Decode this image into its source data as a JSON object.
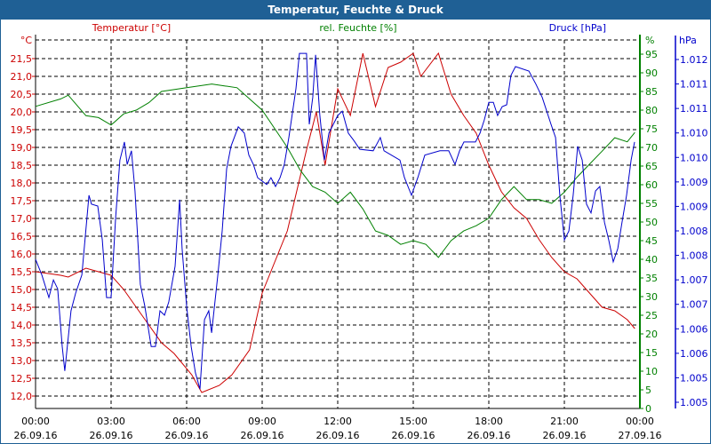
{
  "window": {
    "title": "Temperatur, Feuchte & Druck"
  },
  "colors": {
    "temp": "#cc0000",
    "hum": "#008000",
    "press": "#0000cc",
    "title_bg": "#1f6095"
  },
  "chart_data": {
    "type": "line",
    "title": "Temperatur, Feuchte & Druck",
    "x_unit": "hours since 26.09.16 00:00",
    "x_ticks": [
      {
        "time": "00:00",
        "date": "26.09.16"
      },
      {
        "time": "03:00",
        "date": "26.09.16"
      },
      {
        "time": "06:00",
        "date": "26.09.16"
      },
      {
        "time": "09:00",
        "date": "26.09.16"
      },
      {
        "time": "12:00",
        "date": "26.09.16"
      },
      {
        "time": "15:00",
        "date": "26.09.16"
      },
      {
        "time": "18:00",
        "date": "26.09.16"
      },
      {
        "time": "21:00",
        "date": "26.09.16"
      },
      {
        "time": "00:00",
        "date": "27.09.16"
      }
    ],
    "xlim": [
      0,
      24
    ],
    "axes": {
      "temp": {
        "label": "Temperatur [°C]",
        "unit": "°C",
        "ylim": [
          11.65,
          22.0
        ],
        "ticks": [
          "21,5",
          "21,0",
          "20,5",
          "20,0",
          "19,5",
          "19,0",
          "18,5",
          "18,0",
          "17,5",
          "17,0",
          "16,5",
          "16,0",
          "15,5",
          "15,0",
          "14,5",
          "14,0",
          "13,5",
          "13,0",
          "12,5",
          "12,0"
        ]
      },
      "hum": {
        "label": "rel. Feuchte [%]",
        "unit": "%",
        "ylim": [
          0,
          99
        ],
        "ticks": [
          "95",
          "90",
          "85",
          "80",
          "75",
          "70",
          "65",
          "60",
          "55",
          "50",
          "45",
          "40",
          "35",
          "30",
          "25",
          "20",
          "15",
          "10",
          "5",
          "0"
        ]
      },
      "press": {
        "label": "Druck [hPa]",
        "unit": "hPa",
        "ylim": [
          1004.87,
          1012.22
        ],
        "ticks": [
          "1.012",
          "1.011",
          "1.011",
          "1.010",
          "1.010",
          "1.009",
          "1.009",
          "1.008",
          "1.008",
          "1.007",
          "1.007",
          "1.006",
          "1.006",
          "1.005",
          "1.005"
        ]
      }
    },
    "series": [
      {
        "name": "Temperatur",
        "axis": "temp",
        "x": [
          0,
          1,
          1.3,
          2,
          3,
          3.5,
          4,
          5,
          5.5,
          6.2,
          6.6,
          7.3,
          7.8,
          8.5,
          9,
          10,
          10.75,
          11.15,
          11.5,
          12,
          12.5,
          13,
          13.5,
          14,
          14.5,
          15,
          15.3,
          16,
          16.5,
          17,
          17.5,
          18,
          18.5,
          19,
          19.5,
          20,
          20.5,
          21,
          21.5,
          22,
          22.5,
          23,
          23.5,
          23.8
        ],
        "y": [
          15.5,
          15.4,
          15.35,
          15.6,
          15.4,
          15.0,
          14.5,
          13.5,
          13.2,
          12.6,
          12.1,
          12.3,
          12.6,
          13.3,
          14.9,
          16.65,
          18.9,
          20.0,
          18.5,
          20.65,
          19.9,
          21.65,
          20.15,
          21.25,
          21.4,
          21.65,
          21.0,
          21.65,
          20.5,
          19.9,
          19.4,
          18.5,
          17.75,
          17.3,
          17.0,
          16.4,
          15.9,
          15.5,
          15.3,
          14.9,
          14.5,
          14.4,
          14.15,
          13.9
        ]
      },
      {
        "name": "rel. Feuchte",
        "axis": "hum",
        "x": [
          0,
          1,
          1.3,
          2,
          2.5,
          3,
          3.5,
          4,
          4.5,
          5,
          6,
          7,
          7.5,
          8,
          8.5,
          9,
          9.5,
          10,
          10.5,
          11,
          11.5,
          12,
          12.5,
          13,
          13.5,
          14,
          14.5,
          15,
          15.5,
          16,
          16.5,
          17,
          17.5,
          18,
          18.5,
          19,
          19.5,
          20,
          20.5,
          21,
          21.5,
          22,
          22.5,
          23,
          23.5,
          23.8
        ],
        "y": [
          81,
          83,
          84,
          78.5,
          78,
          76,
          79,
          80,
          82,
          85,
          86,
          87,
          86.5,
          86,
          83,
          80,
          75,
          70,
          64,
          59.5,
          58,
          55,
          58,
          53.5,
          47.6,
          46.4,
          44,
          45,
          44,
          40.5,
          45,
          47.6,
          49,
          51,
          56,
          59.5,
          56,
          56,
          55,
          58,
          62,
          65.5,
          69,
          72.6,
          71.5,
          74
        ]
      },
      {
        "name": "Druck",
        "axis": "press",
        "x": [
          0,
          0.25,
          0.53,
          0.71,
          0.88,
          1.06,
          1.16,
          1.41,
          1.59,
          1.84,
          2.12,
          2.22,
          2.47,
          2.65,
          2.82,
          3.0,
          3.18,
          3.35,
          3.53,
          3.64,
          3.81,
          3.95,
          4.16,
          4.34,
          4.59,
          4.76,
          4.94,
          5.12,
          5.29,
          5.54,
          5.72,
          5.82,
          6.0,
          6.18,
          6.35,
          6.53,
          6.71,
          6.88,
          6.99,
          7.24,
          7.41,
          7.59,
          7.76,
          8.05,
          8.29,
          8.47,
          8.65,
          8.82,
          9.18,
          9.35,
          9.53,
          9.71,
          9.88,
          10.06,
          10.34,
          10.48,
          10.76,
          10.87,
          11.01,
          11.12,
          11.29,
          11.47,
          11.65,
          12.0,
          12.18,
          12.42,
          12.64,
          12.88,
          13.41,
          13.69,
          13.84,
          14.47,
          14.65,
          14.93,
          15.18,
          15.46,
          16.06,
          16.41,
          16.66,
          16.84,
          17.01,
          17.47,
          17.65,
          17.82,
          18.0,
          18.18,
          18.35,
          18.53,
          18.71,
          18.88,
          19.06,
          19.59,
          19.87,
          20.12,
          20.47,
          20.65,
          20.82,
          21.0,
          21.18,
          21.35,
          21.53,
          21.71,
          21.88,
          22.06,
          22.24,
          22.41,
          22.59,
          22.76,
          22.94,
          23.12,
          23.29,
          23.47,
          23.65,
          23.79
        ],
        "y": [
          1007.92,
          1007.6,
          1007.14,
          1007.5,
          1007.32,
          1006.14,
          1005.64,
          1006.87,
          1007.23,
          1007.6,
          1009.23,
          1009.05,
          1009.01,
          1008.32,
          1007.14,
          1007.14,
          1008.77,
          1009.95,
          1010.32,
          1009.86,
          1010.14,
          1009.32,
          1007.41,
          1006.96,
          1006.14,
          1006.14,
          1006.87,
          1006.78,
          1007.05,
          1007.78,
          1009.14,
          1008.14,
          1006.96,
          1006.14,
          1005.6,
          1005.27,
          1006.69,
          1006.87,
          1006.42,
          1007.6,
          1008.5,
          1009.77,
          1010.23,
          1010.63,
          1010.5,
          1010.05,
          1009.86,
          1009.59,
          1009.45,
          1009.59,
          1009.41,
          1009.59,
          1009.86,
          1010.41,
          1011.41,
          1012.13,
          1012.13,
          1010.68,
          1011.23,
          1012.1,
          1010.86,
          1009.95,
          1010.5,
          1010.86,
          1010.95,
          1010.5,
          1010.35,
          1010.17,
          1010.14,
          1010.41,
          1010.14,
          1009.95,
          1009.59,
          1009.23,
          1009.59,
          1010.05,
          1010.14,
          1010.14,
          1009.86,
          1010.14,
          1010.32,
          1010.32,
          1010.5,
          1010.77,
          1011.13,
          1011.13,
          1010.86,
          1011.04,
          1011.08,
          1011.68,
          1011.86,
          1011.77,
          1011.5,
          1011.23,
          1010.68,
          1010.41,
          1009.23,
          1008.32,
          1008.5,
          1009.23,
          1010.23,
          1009.95,
          1009.05,
          1008.87,
          1009.32,
          1009.41,
          1008.68,
          1008.32,
          1007.87,
          1008.14,
          1008.68,
          1009.23,
          1009.95,
          1010.32
        ]
      }
    ]
  }
}
